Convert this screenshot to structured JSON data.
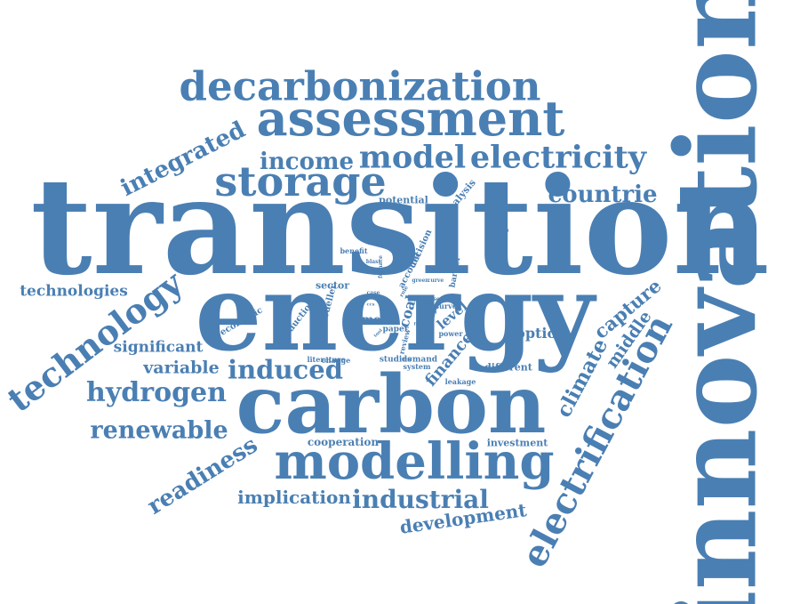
{
  "color": "#4a7fb3",
  "background": "#ffffff",
  "words": [
    "transition",
    "energy",
    "innovation",
    "carbon",
    "modelling",
    "assessment",
    "decarbonization",
    "electricity",
    "model",
    "storage",
    "income",
    "integrated",
    "countrie",
    "technology",
    "electrification",
    "hydrogen",
    "renewable",
    "induced",
    "variable",
    "industrial",
    "implication",
    "readiness",
    "development",
    "technologies",
    "significant",
    "climate",
    "capture",
    "middle",
    "option",
    "finance",
    "analysis",
    "policy",
    "potential",
    "benefit",
    "blast",
    "furnace",
    "account",
    "decision",
    "sector",
    "economic",
    "reduction",
    "modeller",
    "coal",
    "menu",
    "paper",
    "level",
    "survey",
    "power",
    "review",
    "literature",
    "change",
    "studies",
    "demand",
    "system",
    "leakage",
    "different",
    "cooperation",
    "investment",
    "green",
    "curve",
    "barrier",
    "case",
    "role",
    "ccs",
    "used",
    "cost",
    "tool",
    "fund"
  ]
}
